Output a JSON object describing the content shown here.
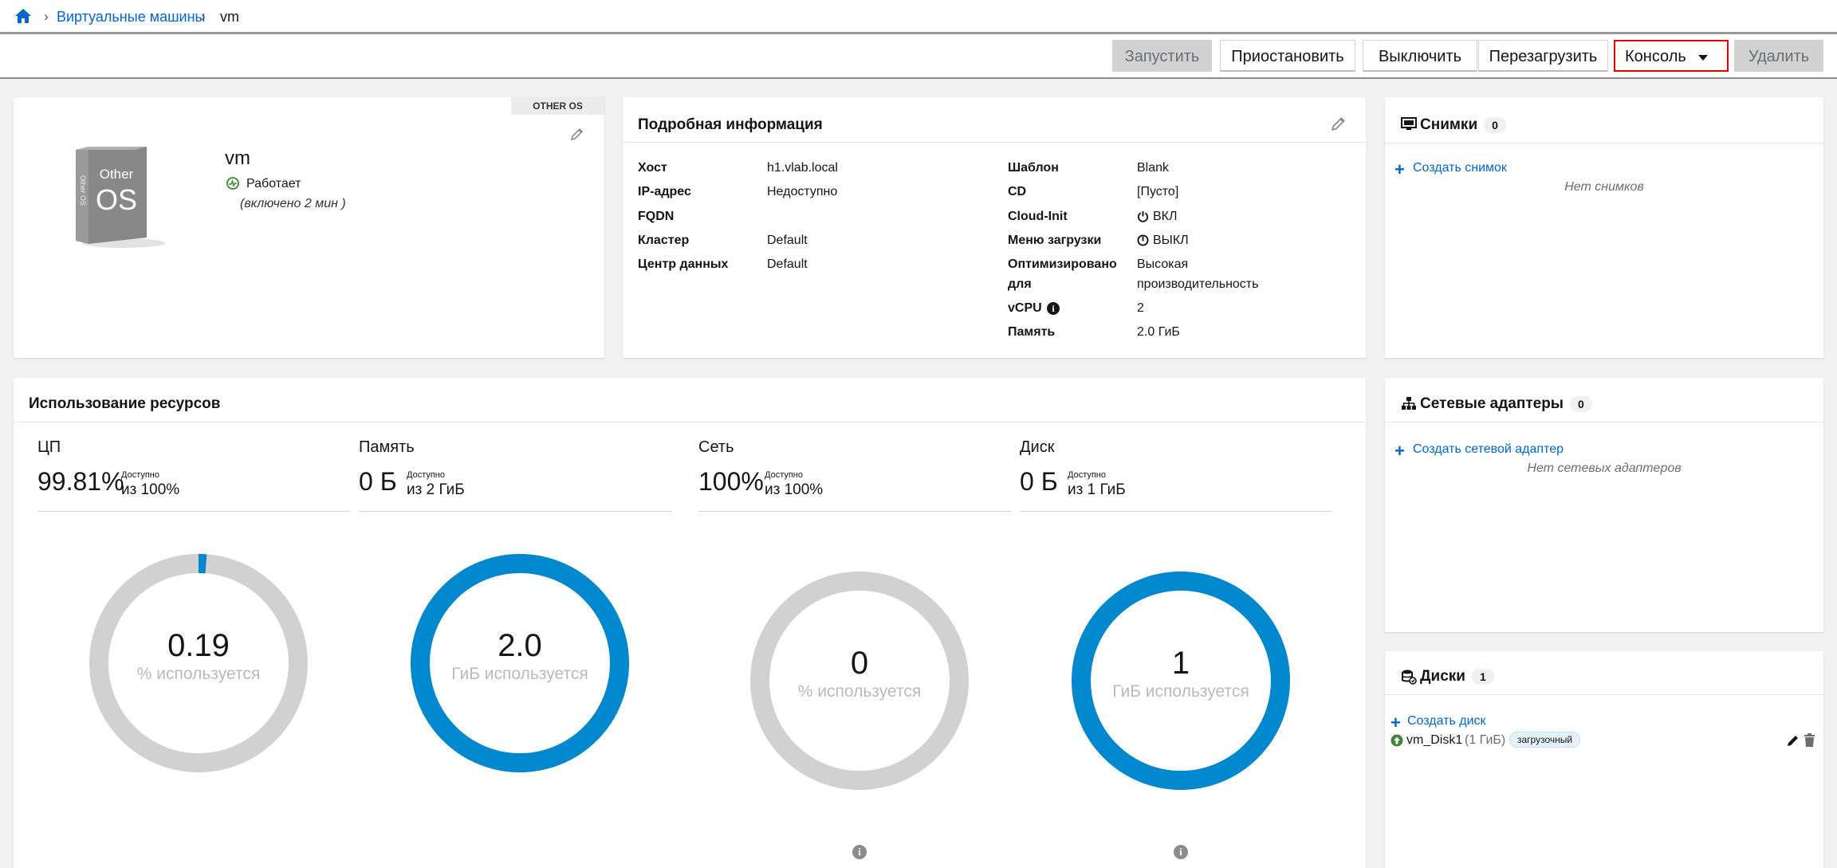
{
  "breadcrumb": {
    "link": "Виртуальные машины",
    "current": "vm"
  },
  "actions": {
    "start": "Запустить",
    "pause": "Приостановить",
    "shutdown": "Выключить",
    "reboot": "Перезагрузить",
    "console": "Консоль",
    "delete": "Удалить"
  },
  "vm": {
    "os_tag": "OTHER OS",
    "os_logo_top": "Other",
    "os_logo_big": "OS",
    "os_logo_side": "Other OS",
    "name": "vm",
    "status": "Работает",
    "uptime": "(включено 2 мин )"
  },
  "details": {
    "title": "Подробная информация",
    "left": [
      {
        "label": "Хост",
        "value": "h1.vlab.local"
      },
      {
        "label": "IP-адрес",
        "value": "Недоступно"
      },
      {
        "label": "FQDN",
        "value": ""
      },
      {
        "label": "Кластер",
        "value": "Default"
      },
      {
        "label": "Центр данных",
        "value": "Default"
      }
    ],
    "right": [
      {
        "label": "Шаблон",
        "value": "Blank"
      },
      {
        "label": "CD",
        "value": "[Пусто]"
      },
      {
        "label": "Cloud-Init",
        "value": "ВКЛ"
      },
      {
        "label": "Меню загрузки",
        "value": "ВЫКЛ"
      },
      {
        "label": "Оптимизировано",
        "label2": "для",
        "value": "Высокая",
        "value2": "производительность"
      },
      {
        "label": "vCPU",
        "value": "2"
      },
      {
        "label": "Память",
        "value": "2.0 ГиБ"
      }
    ]
  },
  "snapshots": {
    "title": "Снимки",
    "count": "0",
    "create": "Создать снимок",
    "empty": "Нет снимков"
  },
  "nics": {
    "title": "Сетевые адаптеры",
    "count": "0",
    "create": "Создать сетевой адаптер",
    "empty": "Нет сетевых адаптеров"
  },
  "disks": {
    "title": "Диски",
    "count": "1",
    "create": "Создать диск",
    "name": "vm_Disk1",
    "size": "(1 ГиБ)",
    "tag": "загрузочный"
  },
  "utilization": {
    "title": "Использование ресурсов",
    "available_label": "Доступно",
    "items": [
      {
        "title": "ЦП",
        "used": "99.81%",
        "of": "из 100%",
        "donut_value": "0.19",
        "donut_unit": "% используется",
        "fraction": 0.0019
      },
      {
        "title": "Память",
        "used": "0 Б",
        "of": "из 2 ГиБ",
        "donut_value": "2.0",
        "donut_unit": "ГиБ используется",
        "fraction": 1.0
      },
      {
        "title": "Сеть",
        "used": "100%",
        "of": "из 100%",
        "donut_value": "0",
        "donut_unit": "% используется",
        "fraction": 0.0
      },
      {
        "title": "Диск",
        "used": "0 Б",
        "of": "из 1 ГиБ",
        "donut_value": "1",
        "donut_unit": "ГиБ используется",
        "fraction": 1.0
      }
    ]
  },
  "colors": {
    "accent": "#0066cc",
    "donut_used": "#0088ce",
    "donut_free": "#d1d1d1",
    "status_ok": "#3e8635",
    "highlight": "#e00000"
  }
}
